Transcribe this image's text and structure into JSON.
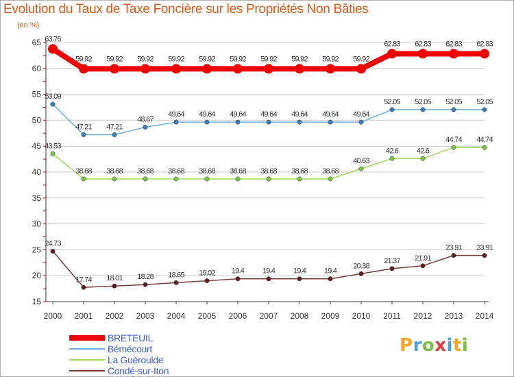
{
  "title": "Evolution du Taux de Taxe Foncière sur les Propriétés Non Bâties",
  "unit_label": "(en %)",
  "logo": {
    "letters": [
      "P",
      "r",
      "o",
      "x",
      "i",
      "t",
      "i"
    ],
    "colors": [
      "#f5a623",
      "#4a9fd8",
      "#7ac143",
      "#e63939",
      "#4a9fd8",
      "#f5a623",
      "#7ac143"
    ]
  },
  "chart_data": {
    "type": "line",
    "title": "Evolution du Taux de Taxe Foncière sur les Propriétés Non Bâties",
    "xlabel": "",
    "ylabel": "(en %)",
    "categories": [
      "2000",
      "2001",
      "2002",
      "2003",
      "2004",
      "2005",
      "2006",
      "2007",
      "2008",
      "2009",
      "2010",
      "2011",
      "2012",
      "2013",
      "2014"
    ],
    "ylim": [
      15,
      65
    ],
    "yticks": [
      15,
      20,
      25,
      30,
      35,
      40,
      45,
      50,
      55,
      60,
      65
    ],
    "series": [
      {
        "name": "BRETEUIL",
        "color": "#ee0000",
        "marker": "#ee0000",
        "emphasis": true,
        "values": [
          63.76,
          59.92,
          59.92,
          59.92,
          59.92,
          59.92,
          59.92,
          59.92,
          59.92,
          59.92,
          59.92,
          62.83,
          62.83,
          62.83,
          62.83
        ],
        "labels": [
          "63.76",
          "59.92",
          "59.92",
          "59.92",
          "59.92",
          "59.92",
          "59.92",
          "59.92",
          "59.92",
          "59.92",
          "59.92",
          "62.83",
          "62.83",
          "62.83",
          "62.83"
        ]
      },
      {
        "name": "Bémécourt",
        "color": "#6aaee0",
        "marker": "#3b7fbf",
        "emphasis": false,
        "values": [
          53.09,
          47.21,
          47.21,
          48.67,
          49.64,
          49.64,
          49.64,
          49.64,
          49.64,
          49.64,
          49.64,
          52.05,
          52.05,
          52.05,
          52.05
        ],
        "labels": [
          "53.09",
          "47.21",
          "47.21",
          "48.67",
          "49.64",
          "49.64",
          "49.64",
          "49.64",
          "49.64",
          "49.64",
          "49.64",
          "52.05",
          "52.05",
          "52.05",
          "52.05"
        ]
      },
      {
        "name": "La Guéroulde",
        "color": "#9ad95a",
        "marker": "#7cc443",
        "emphasis": false,
        "values": [
          43.53,
          38.68,
          38.68,
          38.68,
          38.68,
          38.68,
          38.68,
          38.68,
          38.68,
          38.68,
          40.63,
          42.6,
          42.6,
          44.74,
          44.74
        ],
        "labels": [
          "43.53",
          "38.68",
          "38.68",
          "38.68",
          "38.68",
          "38.68",
          "38.68",
          "38.68",
          "38.68",
          "38.68",
          "40.63",
          "42.6",
          "42.6",
          "44.74",
          "44.74"
        ]
      },
      {
        "name": "Condé-sur-Iton",
        "color": "#7a3b3b",
        "marker": "#5e1f1f",
        "emphasis": false,
        "values": [
          24.73,
          17.74,
          18.01,
          18.28,
          18.65,
          19.02,
          19.4,
          19.4,
          19.4,
          19.4,
          20.38,
          21.37,
          21.91,
          23.91,
          23.91
        ],
        "labels": [
          "24.73",
          "17.74",
          "18.01",
          "18.28",
          "18.65",
          "19.02",
          "19.4",
          "19.4",
          "19.4",
          "19.4",
          "20.38",
          "21.37",
          "21.91",
          "23.91",
          "23.91"
        ]
      }
    ]
  }
}
